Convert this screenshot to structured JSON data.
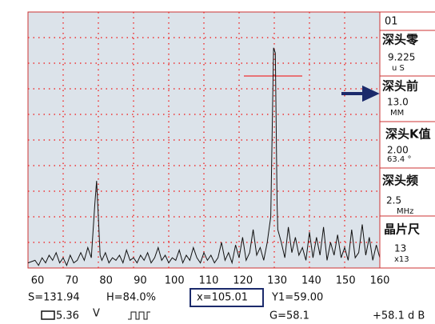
{
  "scope": {
    "xlim": [
      60,
      160
    ],
    "ylim": [
      0,
      100
    ],
    "xticks": [
      60,
      70,
      80,
      90,
      100,
      110,
      120,
      130,
      140,
      150,
      160
    ],
    "trace": {
      "x": [
        60,
        62,
        63,
        64,
        65,
        66,
        67,
        68,
        69,
        70,
        71,
        72,
        73,
        74,
        75,
        76,
        77,
        78,
        79,
        79.5,
        80,
        80.5,
        81,
        82,
        83,
        84,
        85,
        86,
        87,
        88,
        89,
        90,
        91,
        92,
        93,
        94,
        95,
        96,
        97,
        98,
        99,
        100,
        101,
        102,
        103,
        104,
        105,
        106,
        107,
        108,
        109,
        110,
        111,
        112,
        113,
        114,
        115,
        116,
        117,
        118,
        119,
        120,
        121,
        122,
        123,
        124,
        125,
        126,
        127,
        128,
        129,
        129.8,
        130.3,
        130.8,
        131,
        132,
        133,
        134,
        135,
        136,
        137,
        138,
        139,
        140,
        141,
        142,
        143,
        144,
        145,
        146,
        147,
        148,
        149,
        150,
        151,
        152,
        153,
        154,
        155,
        156,
        157,
        158,
        159,
        160
      ],
      "y": [
        2,
        3,
        1,
        4,
        2,
        5,
        3,
        6,
        2,
        4,
        1,
        5,
        2,
        3,
        6,
        3,
        8,
        4,
        25,
        34,
        20,
        5,
        3,
        6,
        2,
        4,
        3,
        5,
        2,
        7,
        3,
        4,
        2,
        5,
        3,
        6,
        2,
        4,
        8,
        3,
        5,
        2,
        4,
        3,
        7,
        2,
        5,
        3,
        8,
        4,
        2,
        6,
        3,
        5,
        2,
        4,
        10,
        3,
        6,
        2,
        9,
        4,
        12,
        3,
        6,
        15,
        5,
        8,
        3,
        10,
        20,
        86,
        84,
        25,
        15,
        10,
        4,
        16,
        6,
        12,
        5,
        8,
        3,
        14,
        4,
        12,
        5,
        16,
        3,
        10,
        5,
        13,
        4,
        8,
        3,
        15,
        4,
        6,
        17,
        5,
        12,
        3,
        9,
        4
      ]
    }
  },
  "panel": [
    {
      "label": "01"
    },
    {
      "label": "深头零",
      "value": "9.225",
      "unit": "u S"
    },
    {
      "label": "深头前",
      "value": "13.0",
      "unit": "MM"
    },
    {
      "label": "深头K值",
      "value": "2.00",
      "unit": "63.4 °"
    },
    {
      "label": "深头频",
      "value": "2.5",
      "unit": "MHz"
    },
    {
      "label": "晶片尺",
      "value": "13",
      "unit": "x13"
    }
  ],
  "status": {
    "s": "S=131.94",
    "h": "H=84.0%",
    "x": "x=105.01",
    "y1": "Y1=59.00",
    "battery": "5.36",
    "battery_unit": "V",
    "g": "G=58.1",
    "gain": "+58.1 d B"
  }
}
